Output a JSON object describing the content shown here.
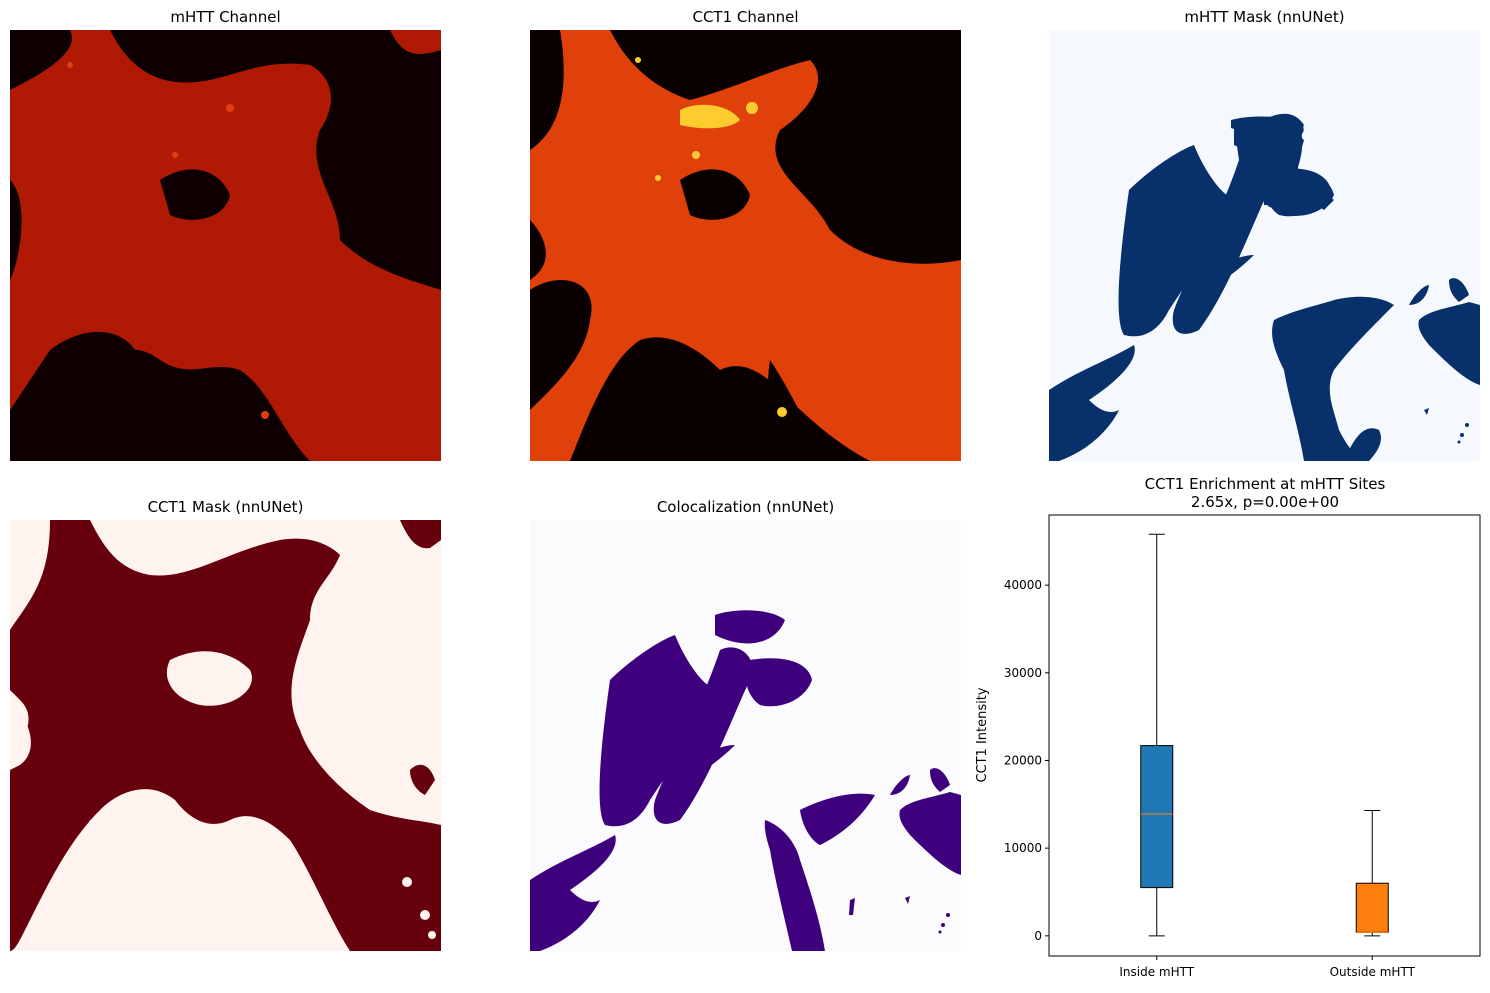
{
  "panels": {
    "mhtt_channel": {
      "title": "mHTT Channel"
    },
    "cct1_channel": {
      "title": "CCT1 Channel"
    },
    "mhtt_mask": {
      "title": "mHTT Mask (nnUNet)"
    },
    "cct1_mask": {
      "title": "CCT1 Mask (nnUNet)"
    },
    "colocalization": {
      "title": "Colocalization (nnUNet)"
    }
  },
  "colors": {
    "mhtt_bg": "#0e0000",
    "mhtt_cell": "#b01a05",
    "mhtt_bright": "#e04010",
    "cct1_bg": "#0a0000",
    "cct1_cell": "#e0400a",
    "cct1_bright": "#ffcc30",
    "mask_blue_bg": "#f5f9fe",
    "mask_blue_fg": "#08306b",
    "mask_red_bg": "#fff3ef",
    "mask_red_fg": "#67000d",
    "coloc_bg": "#fbfafd",
    "coloc_fg": "#3f007d",
    "box_inside": "#1f77b4",
    "box_outside": "#ff7f0e",
    "median_line": "#ff7f0e"
  },
  "chart_data": {
    "type": "box",
    "title": "CCT1 Enrichment at mHTT Sites\n2.65x, p=0.00e+00",
    "xlabel": "",
    "ylabel": "CCT1 Intensity",
    "ylim": [
      -2300,
      48000
    ],
    "yticks": [
      0,
      10000,
      20000,
      30000,
      40000
    ],
    "ytick_labels": [
      "0",
      "10000",
      "20000",
      "30000",
      "40000"
    ],
    "categories": [
      "Inside mHTT",
      "Outside mHTT"
    ],
    "boxes": [
      {
        "label": "Inside mHTT",
        "min": 0,
        "q1": 5500,
        "median": 13900,
        "q3": 21700,
        "max": 45800,
        "color": "#1f77b4"
      },
      {
        "label": "Outside mHTT",
        "min": 0,
        "q1": 400,
        "median": 400,
        "q3": 6000,
        "max": 14300,
        "color": "#ff7f0e"
      }
    ]
  }
}
